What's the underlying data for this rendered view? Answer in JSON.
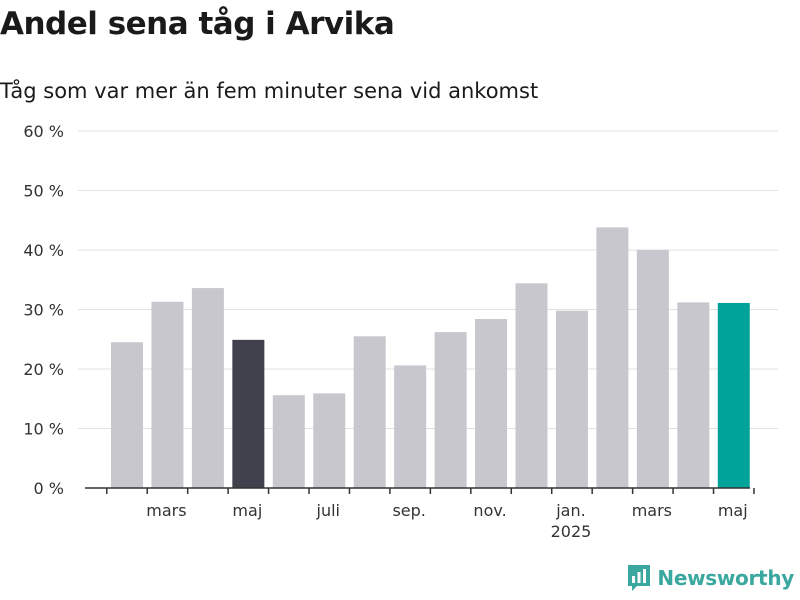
{
  "header": {
    "title": "Andel sena tåg i Arvika",
    "subtitle": "Tåg som var mer än fem minuter sena vid ankomst"
  },
  "brand": {
    "name": "Newsworthy",
    "icon": "newsworthy-logo-icon"
  },
  "colors": {
    "default": "#c8c7ce",
    "dark": "#41404d",
    "highlight": "#00a39a"
  },
  "chart_data": {
    "type": "bar",
    "title": "Andel sena tåg i Arvika",
    "subtitle": "Tåg som var mer än fem minuter sena vid ankomst",
    "xlabel": "",
    "ylabel": "",
    "ylim": [
      0,
      60
    ],
    "yticks": [
      0,
      10,
      20,
      30,
      40,
      50,
      60
    ],
    "ytick_labels": [
      "0 %",
      "10 %",
      "20 %",
      "30 %",
      "40 %",
      "50 %",
      "60 %"
    ],
    "categories": [
      "2024-02",
      "2024-03",
      "2024-04",
      "2024-05",
      "2024-06",
      "2024-07",
      "2024-08",
      "2024-09",
      "2024-10",
      "2024-11",
      "2024-12",
      "2025-01",
      "2025-02",
      "2025-03",
      "2025-04",
      "2025-05"
    ],
    "values": [
      24.5,
      31.3,
      33.6,
      24.9,
      15.6,
      15.9,
      25.5,
      20.6,
      26.2,
      28.4,
      34.4,
      29.8,
      43.8,
      40.0,
      31.2,
      31.1
    ],
    "colors": [
      "default",
      "default",
      "default",
      "dark",
      "default",
      "default",
      "default",
      "default",
      "default",
      "default",
      "default",
      "default",
      "default",
      "default",
      "default",
      "highlight"
    ],
    "xtick_labels": [
      {
        "at": "2024-03",
        "label": "mars"
      },
      {
        "at": "2024-05",
        "label": "maj"
      },
      {
        "at": "2024-07",
        "label": "juli"
      },
      {
        "at": "2024-09",
        "label": "sep."
      },
      {
        "at": "2024-11",
        "label": "nov."
      },
      {
        "at": "2025-01",
        "label": "jan.",
        "sublabel": "2025"
      },
      {
        "at": "2025-03",
        "label": "mars"
      },
      {
        "at": "2025-05",
        "label": "maj"
      }
    ],
    "grid": true
  }
}
